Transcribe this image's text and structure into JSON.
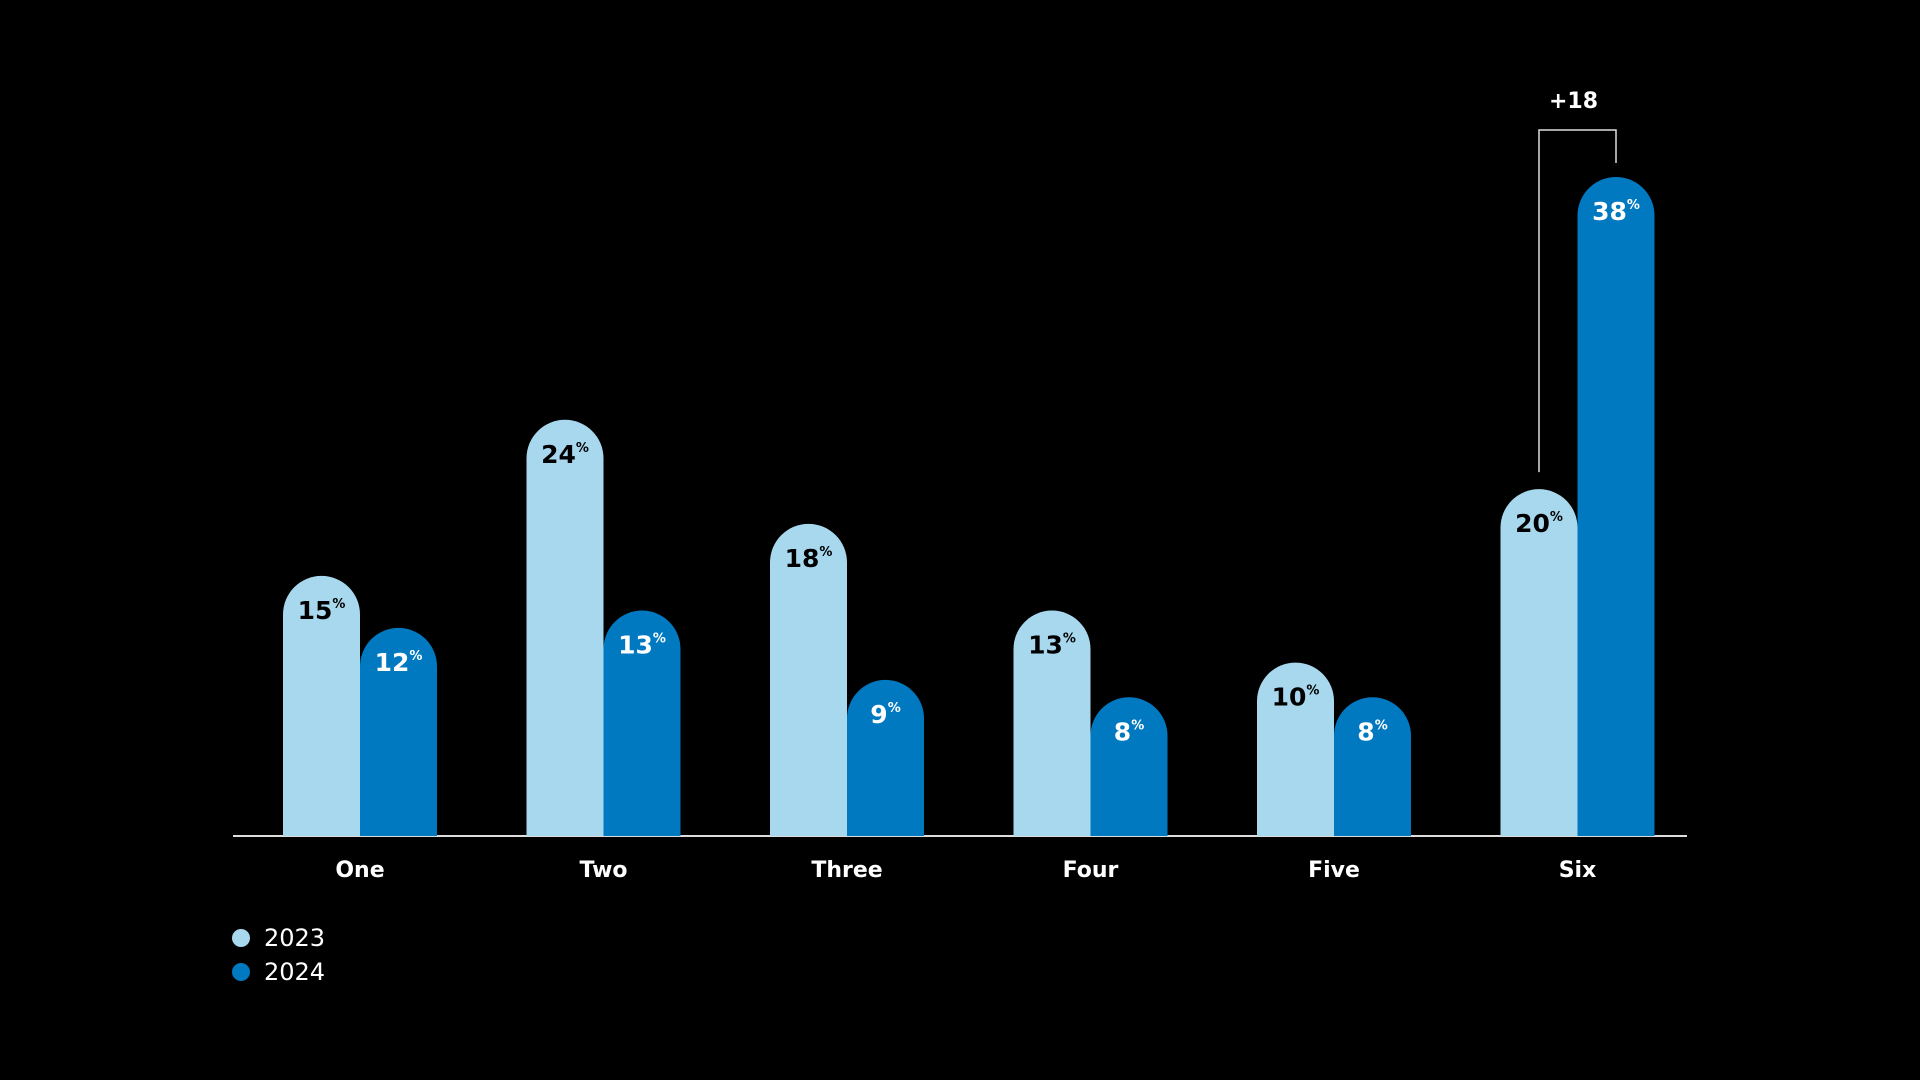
{
  "chart_data": {
    "type": "bar",
    "categories": [
      "One",
      "Two",
      "Three",
      "Four",
      "Five",
      "Six"
    ],
    "series": [
      {
        "name": "2023",
        "color": "#a8d8ee",
        "values": [
          15,
          24,
          18,
          13,
          10,
          20
        ]
      },
      {
        "name": "2024",
        "color": "#0079c1",
        "values": [
          12,
          13,
          9,
          8,
          8,
          38
        ]
      }
    ],
    "value_unit": "%",
    "annotation": {
      "text": "+18",
      "category": 5
    }
  }
}
